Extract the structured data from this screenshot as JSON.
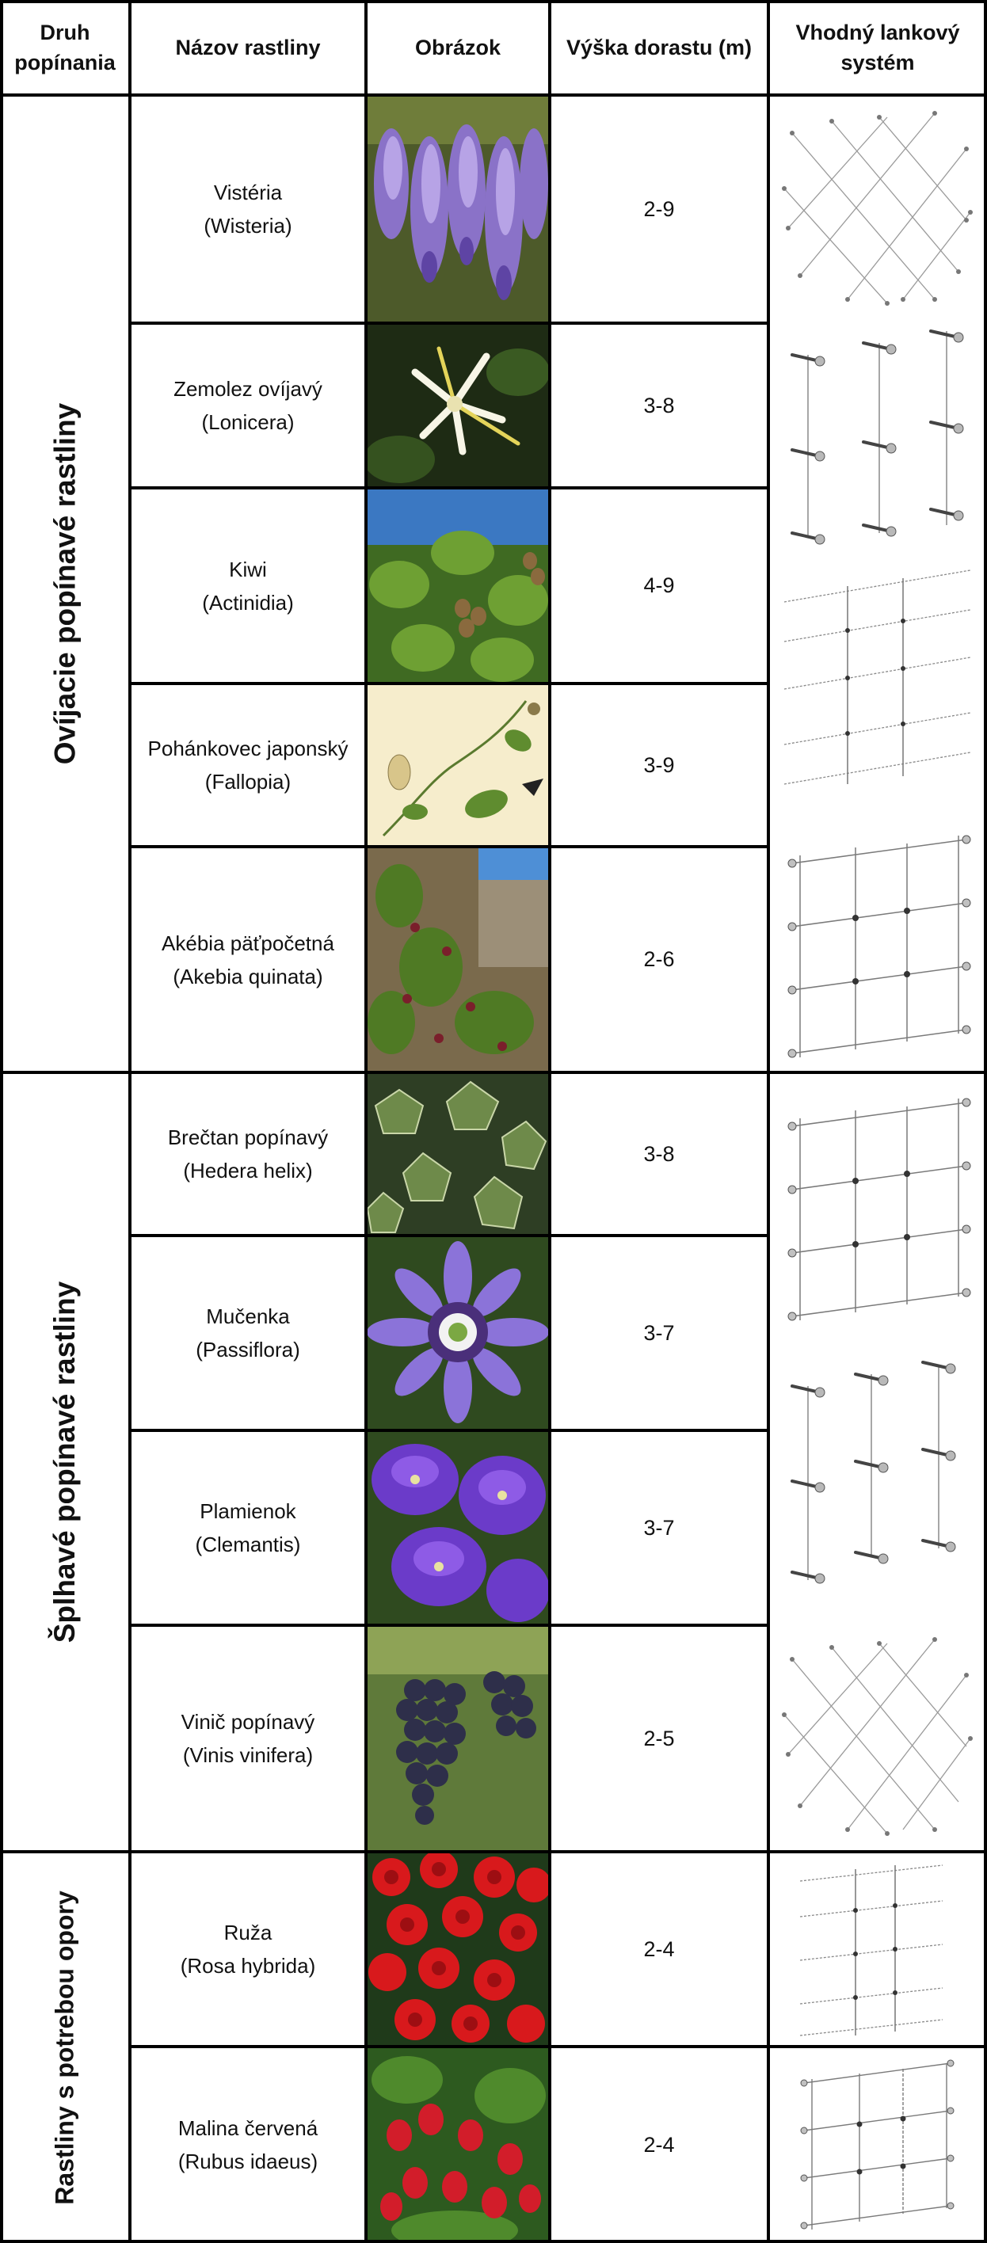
{
  "headers": {
    "type": "Druh\npopínania",
    "name": "Názov rastliny",
    "image": "Obrázok",
    "height": "Výška dorastu (m)",
    "system": "Vhodný lankový\nsystém"
  },
  "groups": [
    {
      "label": "Ovíjacie popínavé rastliny"
    },
    {
      "label": "Šplhavé popínavé rastliny"
    },
    {
      "label": "Rastliny s potrebou opory"
    }
  ],
  "plants": [
    {
      "name": "Vistéria",
      "latin": "(Wisteria)",
      "height": "2-9",
      "image_icon": "wisteria-photo"
    },
    {
      "name": "Zemolez ovíjavý",
      "latin": "(Lonicera)",
      "height": "3-8",
      "image_icon": "honeysuckle-photo"
    },
    {
      "name": "Kiwi",
      "latin": "(Actinidia)",
      "height": "4-9",
      "image_icon": "kiwi-vine-photo"
    },
    {
      "name": "Pohánkovec japonský",
      "latin": "(Fallopia)",
      "height": "3-9",
      "image_icon": "fallopia-illustration"
    },
    {
      "name": "Akébia päťpočetná",
      "latin": "(Akebia quinata)",
      "height": "2-6",
      "image_icon": "akebia-photo"
    },
    {
      "name": "Brečtan popínavý",
      "latin": "(Hedera helix)",
      "height": "3-8",
      "image_icon": "ivy-photo"
    },
    {
      "name": "Mučenka",
      "latin": "(Passiflora)",
      "height": "3-7",
      "image_icon": "passionflower-photo"
    },
    {
      "name": "Plamienok",
      "latin": "(Clemantis)",
      "height": "3-7",
      "image_icon": "clematis-photo"
    },
    {
      "name": "Vinič popínavý",
      "latin": "(Vinis vinifera)",
      "height": "2-5",
      "image_icon": "grapes-photo"
    },
    {
      "name": "Ruža",
      "latin": "(Rosa hybrida)",
      "height": "2-4",
      "image_icon": "roses-photo"
    },
    {
      "name": "Malina červená",
      "latin": "(Rubus idaeus)",
      "height": "2-4",
      "image_icon": "raspberry-photo"
    }
  ],
  "systems": [
    {
      "icon": "diagonal-mesh-cable-system-icon"
    },
    {
      "icon": "vertical-rod-cable-system-icon"
    },
    {
      "icon": "horizontal-cable-trellis-icon"
    },
    {
      "icon": "grid-cable-system-icon"
    },
    {
      "icon": "grid-cable-system-icon"
    },
    {
      "icon": "vertical-rod-cable-system-icon"
    },
    {
      "icon": "diagonal-mesh-cable-system-icon"
    },
    {
      "icon": "horizontal-cable-trellis-icon"
    },
    {
      "icon": "grid-cable-system-icon"
    }
  ],
  "colors": {
    "border": "#000000",
    "background": "#ffffff"
  }
}
